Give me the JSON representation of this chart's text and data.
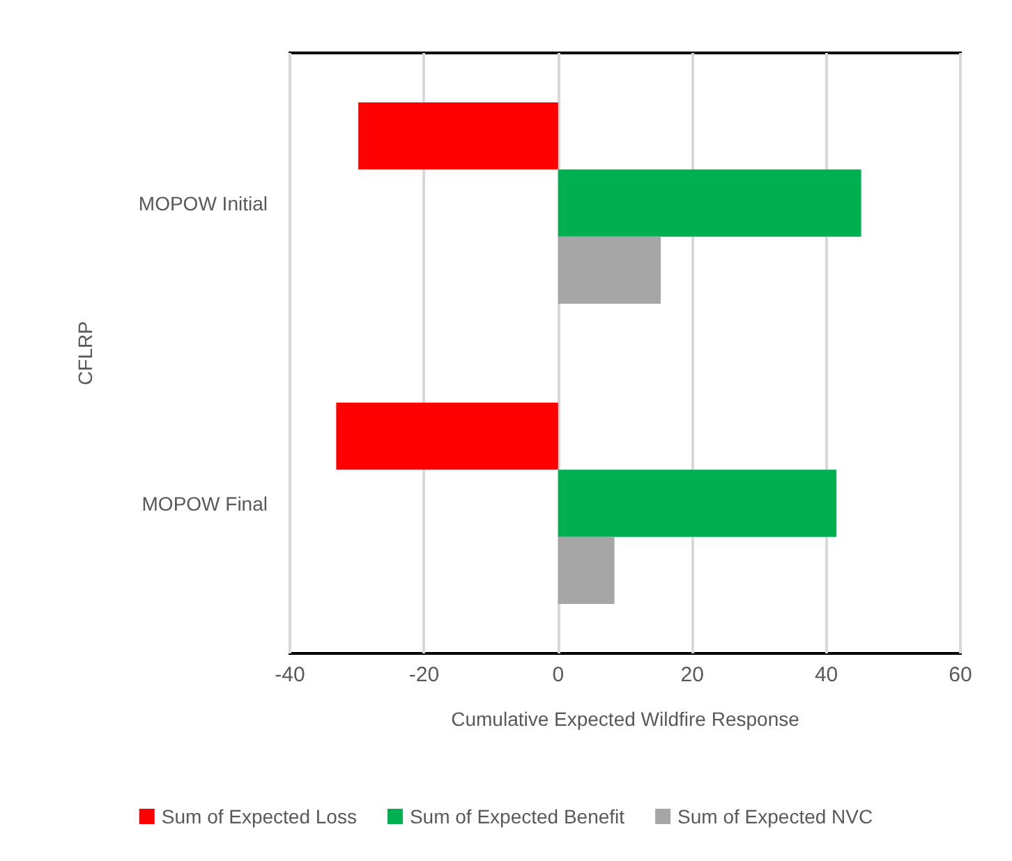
{
  "chart_data": {
    "type": "bar",
    "orientation": "horizontal",
    "xlabel": "Cumulative Expected Wildfire Response",
    "ylabel": "CFLRP",
    "categories": [
      "MOPOW Initial",
      "MOPOW Final"
    ],
    "series": [
      {
        "name": "Sum of Expected Loss",
        "color": "#ff0000",
        "values": [
          -29.8,
          -33.1
        ]
      },
      {
        "name": "Sum of Expected Benefit",
        "color": "#00b050",
        "values": [
          45.2,
          41.5
        ]
      },
      {
        "name": "Sum of Expected NVC",
        "color": "#a6a6a6",
        "values": [
          15.3,
          8.4
        ]
      }
    ],
    "xlim": [
      -40,
      60
    ],
    "xticks": [
      -40,
      -20,
      0,
      20,
      40,
      60
    ],
    "grid": "x",
    "legend": "bottom"
  }
}
